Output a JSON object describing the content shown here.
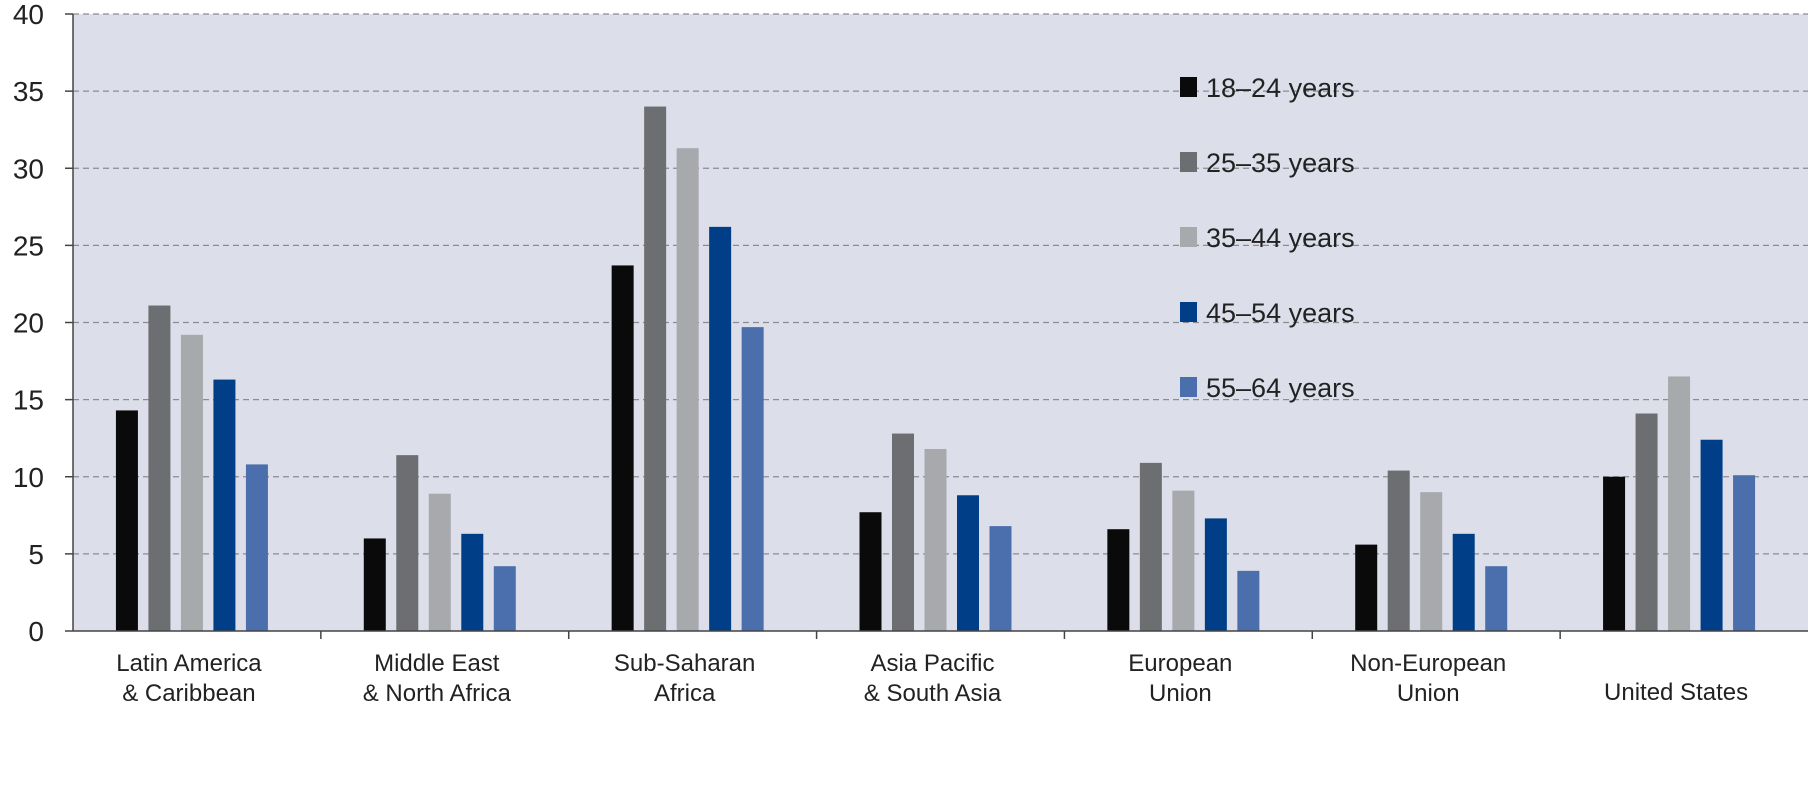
{
  "chart_data": {
    "type": "bar",
    "title": "",
    "xlabel": "",
    "ylabel": "",
    "ylim": [
      0,
      40
    ],
    "yticks": [
      0,
      5,
      10,
      15,
      20,
      25,
      30,
      35,
      40
    ],
    "grid": true,
    "legend_position": "top-right",
    "categories": [
      [
        "Latin America",
        "& Caribbean"
      ],
      [
        "Middle East",
        "& North Africa"
      ],
      [
        "Sub-Saharan",
        "Africa"
      ],
      [
        "Asia Pacific",
        "& South Asia"
      ],
      [
        "European",
        "Union"
      ],
      [
        "Non-European",
        "Union"
      ],
      [
        "United States"
      ]
    ],
    "series": [
      {
        "name": "18–24 years",
        "color": "#0a0a0a",
        "values": [
          14.3,
          6.0,
          23.7,
          7.7,
          6.6,
          5.6,
          10.0
        ]
      },
      {
        "name": "25–35 years",
        "color": "#6d6e71",
        "values": [
          21.1,
          11.4,
          34.0,
          12.8,
          10.9,
          10.4,
          14.1
        ]
      },
      {
        "name": "35–44 years",
        "color": "#a7a9ac",
        "values": [
          19.2,
          8.9,
          31.3,
          11.8,
          9.1,
          9.0,
          16.5
        ]
      },
      {
        "name": "45–54 years",
        "color": "#003f87",
        "values": [
          16.3,
          6.3,
          26.2,
          8.8,
          7.3,
          6.3,
          12.4
        ]
      },
      {
        "name": "55–64 years",
        "color": "#4a6fac",
        "values": [
          10.8,
          4.2,
          19.7,
          6.8,
          3.9,
          4.2,
          10.1
        ]
      }
    ]
  }
}
